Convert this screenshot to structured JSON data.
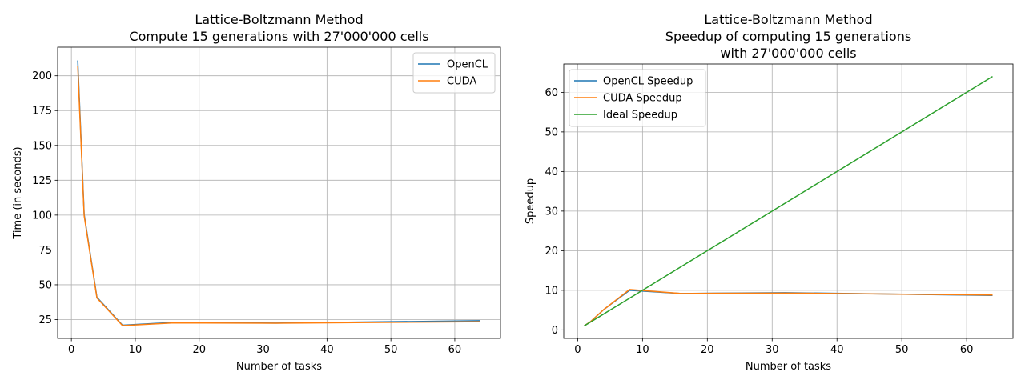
{
  "chart_data": [
    {
      "type": "line",
      "title": "Lattice-Boltzmann Method\nCompute 15 generations with 27'000'000 cells",
      "xlabel": "Number of tasks",
      "ylabel": "Time (in seconds)",
      "xlim": [
        -2.15,
        67.15
      ],
      "ylim": [
        11.5,
        220.5
      ],
      "xticks": [
        0,
        10,
        20,
        30,
        40,
        50,
        60
      ],
      "yticks": [
        25,
        50,
        75,
        100,
        125,
        150,
        175,
        200
      ],
      "grid": true,
      "legend": "top-right",
      "series": [
        {
          "name": "OpenCL",
          "color": "#1f77b4",
          "x": [
            1,
            2,
            4,
            8,
            16,
            32,
            64
          ],
          "y": [
            211.0,
            100.5,
            41.0,
            21.0,
            23.0,
            22.5,
            24.2
          ]
        },
        {
          "name": "CUDA",
          "color": "#ff7f0e",
          "x": [
            1,
            2,
            4,
            8,
            16,
            32,
            64
          ],
          "y": [
            207.0,
            99.5,
            40.5,
            20.7,
            22.6,
            22.4,
            23.5
          ]
        }
      ]
    },
    {
      "type": "line",
      "title": "Lattice-Boltzmann Method\nSpeedup of computing 15 generations\nwith 27'000'000 cells",
      "xlabel": "Number of tasks",
      "ylabel": "Speedup",
      "xlim": [
        -2.15,
        67.15
      ],
      "ylim": [
        -2.15,
        67.15
      ],
      "xticks": [
        0,
        10,
        20,
        30,
        40,
        50,
        60
      ],
      "yticks": [
        0,
        10,
        20,
        30,
        40,
        50,
        60
      ],
      "grid": true,
      "legend": "top-left",
      "series": [
        {
          "name": "OpenCL Speedup",
          "color": "#1f77b4",
          "x": [
            1,
            2,
            4,
            8,
            16,
            32,
            64
          ],
          "y": [
            1.0,
            2.1,
            5.1,
            10.0,
            9.2,
            9.4,
            8.7
          ]
        },
        {
          "name": "CUDA Speedup",
          "color": "#ff7f0e",
          "x": [
            1,
            2,
            4,
            8,
            16,
            32,
            64
          ],
          "y": [
            1.0,
            2.1,
            5.1,
            10.2,
            9.2,
            9.3,
            8.8
          ]
        },
        {
          "name": "Ideal Speedup",
          "color": "#2ca02c",
          "x": [
            1,
            2,
            4,
            8,
            16,
            32,
            64
          ],
          "y": [
            1,
            2,
            4,
            8,
            16,
            32,
            64
          ]
        }
      ]
    }
  ]
}
